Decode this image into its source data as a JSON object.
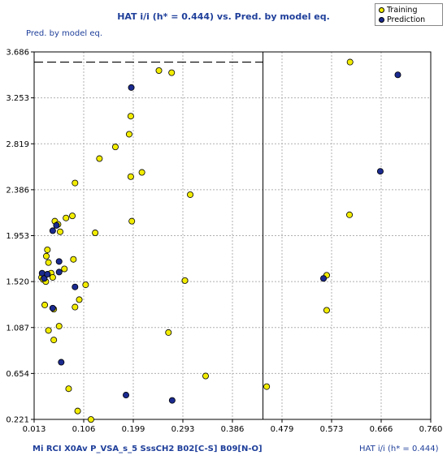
{
  "chart_data": {
    "type": "scatter",
    "title": "HAT i/i (h* = 0.444) vs. Pred. by model eq.",
    "ylabel": "Pred. by model eq.",
    "xlabel": "HAT i/i (h* = 0.444)",
    "descriptor_caption": "Mi  RCI  X0Av  P_VSA_s_5  SssCH2  B02[C-S]  B09[N-O]",
    "xlim": [
      0.013,
      0.76
    ],
    "ylim": [
      0.221,
      3.686
    ],
    "x_ticks": [
      "0.013",
      "0.106",
      "0.199",
      "0.293",
      "0.386",
      "0.479",
      "0.573",
      "0.666",
      "0.760"
    ],
    "y_ticks": [
      "0.221",
      "0.654",
      "1.087",
      "1.520",
      "1.953",
      "2.386",
      "2.819",
      "3.253",
      "3.686"
    ],
    "grid": true,
    "legend_position": "top-right",
    "h_star": 0.444,
    "y_threshold": 3.59,
    "series": [
      {
        "name": "Training",
        "color": "#f2ec00",
        "points": [
          [
            0.027,
            1.56
          ],
          [
            0.03,
            1.54
          ],
          [
            0.033,
            1.3
          ],
          [
            0.035,
            1.52
          ],
          [
            0.036,
            1.76
          ],
          [
            0.038,
            1.82
          ],
          [
            0.04,
            1.06
          ],
          [
            0.04,
            1.7
          ],
          [
            0.045,
            1.6
          ],
          [
            0.048,
            1.56
          ],
          [
            0.05,
            1.26
          ],
          [
            0.05,
            0.97
          ],
          [
            0.052,
            2.09
          ],
          [
            0.058,
            2.06
          ],
          [
            0.06,
            1.1
          ],
          [
            0.062,
            1.99
          ],
          [
            0.07,
            1.64
          ],
          [
            0.073,
            2.12
          ],
          [
            0.078,
            0.51
          ],
          [
            0.085,
            2.14
          ],
          [
            0.087,
            1.73
          ],
          [
            0.09,
            2.45
          ],
          [
            0.09,
            1.28
          ],
          [
            0.095,
            0.3
          ],
          [
            0.098,
            1.35
          ],
          [
            0.11,
            1.49
          ],
          [
            0.12,
            0.22
          ],
          [
            0.128,
            1.98
          ],
          [
            0.136,
            2.68
          ],
          [
            0.166,
            2.79
          ],
          [
            0.192,
            2.91
          ],
          [
            0.195,
            2.51
          ],
          [
            0.195,
            3.08
          ],
          [
            0.197,
            2.09
          ],
          [
            0.216,
            2.55
          ],
          [
            0.248,
            3.51
          ],
          [
            0.266,
            1.04
          ],
          [
            0.272,
            3.49
          ],
          [
            0.297,
            1.53
          ],
          [
            0.307,
            2.34
          ],
          [
            0.336,
            0.63
          ],
          [
            0.451,
            0.53
          ],
          [
            0.564,
            1.25
          ],
          [
            0.564,
            1.58
          ],
          [
            0.607,
            2.15
          ],
          [
            0.608,
            3.59
          ]
        ]
      },
      {
        "name": "Prediction",
        "color": "#1a2a8f",
        "points": [
          [
            0.028,
            1.6
          ],
          [
            0.032,
            1.55
          ],
          [
            0.038,
            1.59
          ],
          [
            0.048,
            1.27
          ],
          [
            0.048,
            2.0
          ],
          [
            0.055,
            2.05
          ],
          [
            0.06,
            1.61
          ],
          [
            0.06,
            1.71
          ],
          [
            0.064,
            0.76
          ],
          [
            0.09,
            1.47
          ],
          [
            0.186,
            0.45
          ],
          [
            0.196,
            3.35
          ],
          [
            0.273,
            0.4
          ],
          [
            0.558,
            1.55
          ],
          [
            0.665,
            2.56
          ],
          [
            0.698,
            3.47
          ]
        ]
      }
    ]
  }
}
